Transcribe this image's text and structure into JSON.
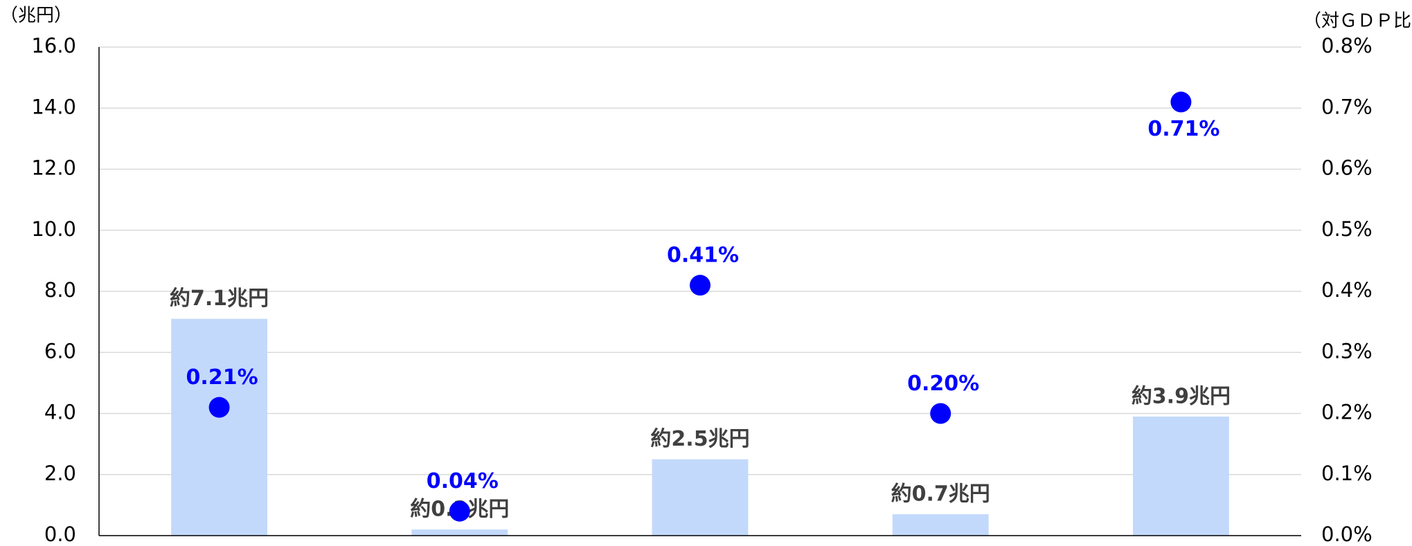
{
  "chart_data": {
    "type": "bar-dot",
    "y_label": "（兆円）",
    "y2_label": "（対ＧＤＰ比）",
    "categories": [
      null,
      null,
      null,
      null,
      null
    ],
    "series": [
      {
        "type": "bar",
        "color": "#c3d9fb",
        "values": [
          7.1,
          0.2,
          2.5,
          0.7,
          3.9
        ],
        "value_labels": [
          "約7.1兆円",
          "約0.2兆円",
          "約2.5兆円",
          "約0.7兆円",
          "約3.9兆円"
        ],
        "label_color": "#404040"
      },
      {
        "type": "dot",
        "axis": "y2",
        "color": "#0000ff",
        "values": [
          0.21,
          0.04,
          0.41,
          0.2,
          0.71
        ],
        "value_labels": [
          "0.21%",
          "0.04%",
          "0.41%",
          "0.20%",
          "0.71%"
        ],
        "label_color": "#0000ff"
      }
    ],
    "ylim": [
      0,
      16
    ],
    "yticks": [
      {
        "value": 0,
        "label": "0.0"
      },
      {
        "value": 2,
        "label": "2.0"
      },
      {
        "value": 4,
        "label": "4.0"
      },
      {
        "value": 6,
        "label": "6.0"
      },
      {
        "value": 8,
        "label": "8.0"
      },
      {
        "value": 10,
        "label": "10.0"
      },
      {
        "value": 12,
        "label": "12.0"
      },
      {
        "value": 14,
        "label": "14.0"
      },
      {
        "value": 16,
        "label": "16.0"
      }
    ],
    "y2lim": [
      0,
      0.8
    ],
    "y2ticks": [
      {
        "value": 0,
        "label": "0.0%"
      },
      {
        "value": 0.1,
        "label": "0.1%"
      },
      {
        "value": 0.2,
        "label": "0.2%"
      },
      {
        "value": 0.3,
        "label": "0.3%"
      },
      {
        "value": 0.4,
        "label": "0.4%"
      },
      {
        "value": 0.5,
        "label": "0.5%"
      },
      {
        "value": 0.6,
        "label": "0.6%"
      },
      {
        "value": 0.7,
        "label": "0.7%"
      },
      {
        "value": 0.8,
        "label": "0.8%"
      }
    ],
    "grid": true
  }
}
